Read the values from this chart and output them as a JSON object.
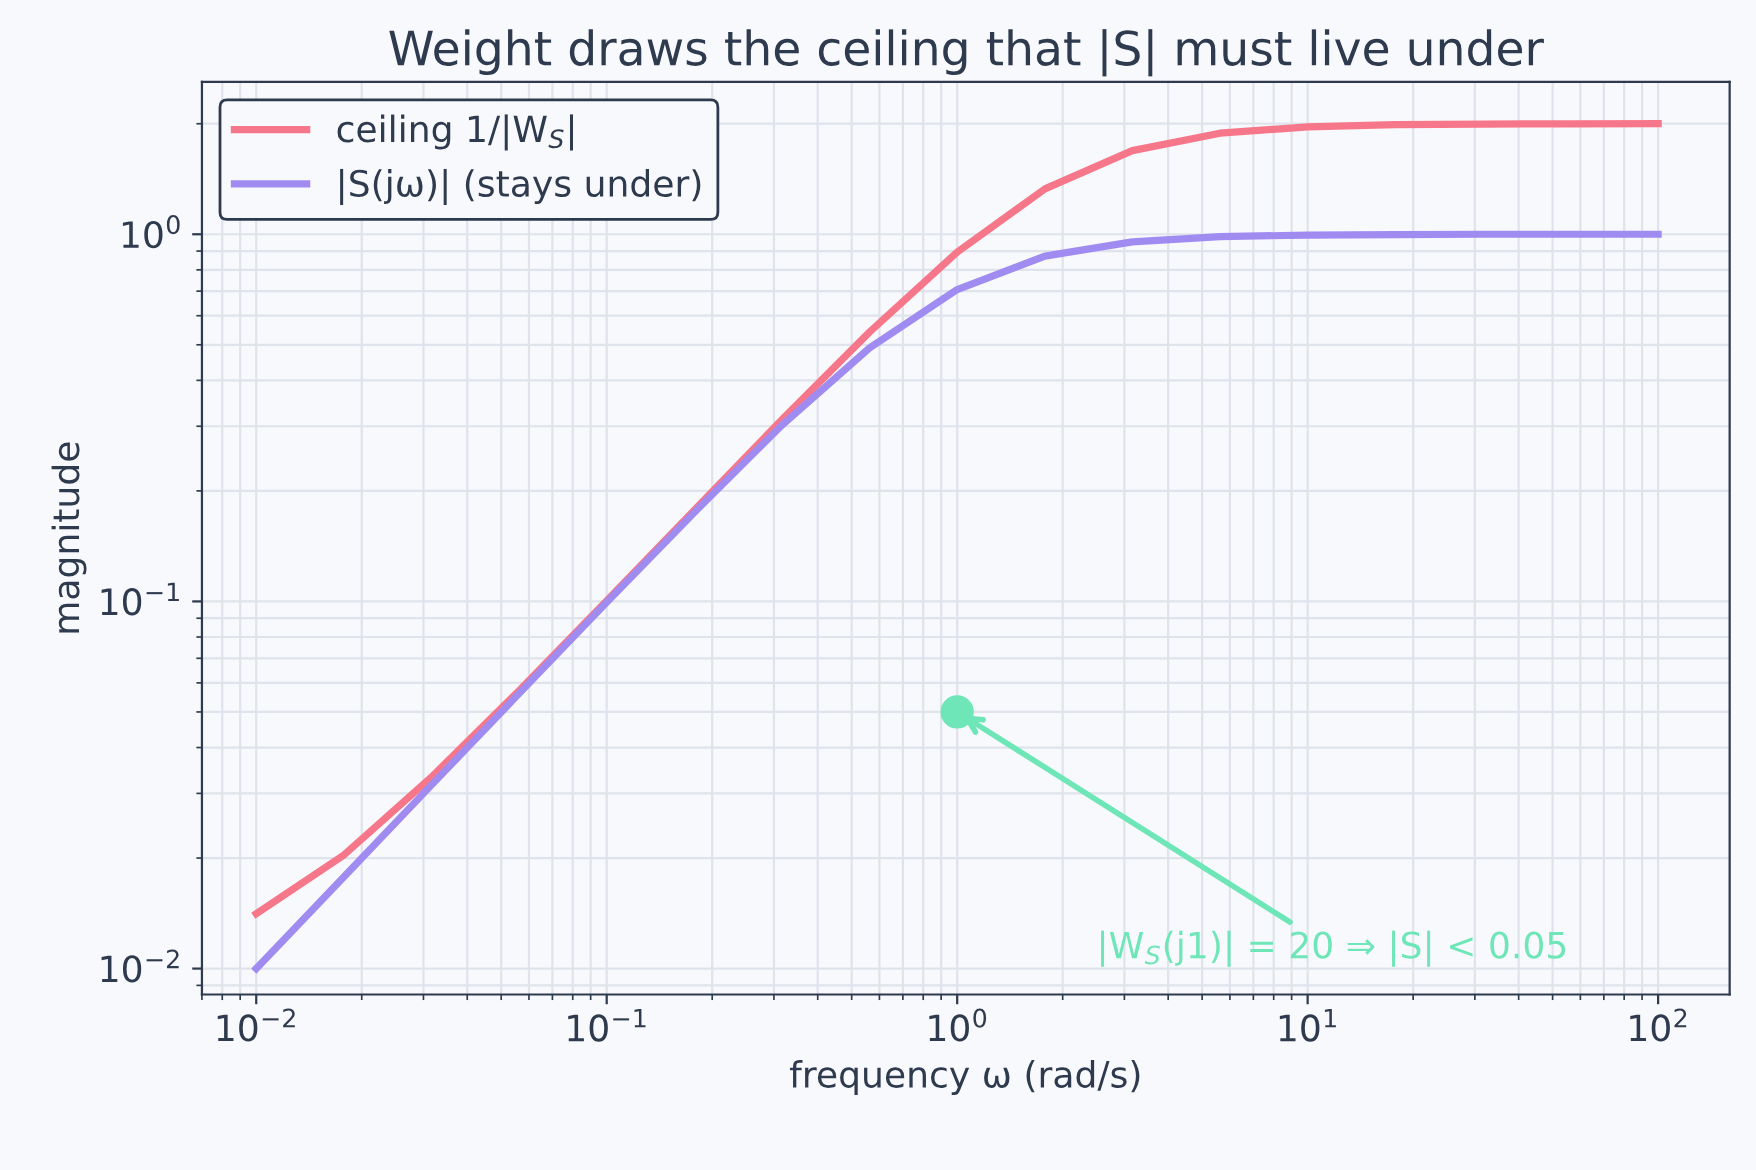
{
  "chart_data": {
    "type": "line",
    "title": "Weight draws the ceiling that |S| must live under",
    "xlabel": "frequency ω (rad/s)",
    "ylabel": "magnitude",
    "x": [
      0.01,
      0.0178,
      0.0316,
      0.0562,
      0.1,
      0.178,
      0.316,
      0.562,
      1,
      1.78,
      3.16,
      5.62,
      10,
      17.8,
      31.6,
      56.2,
      100
    ],
    "series": [
      {
        "name": "ceiling 1/|W$_{S}$|",
        "color": "#f7778a",
        "values": [
          0.0141,
          0.0204,
          0.0332,
          0.0571,
          0.1004,
          0.1774,
          0.3125,
          0.5414,
          0.894,
          1.329,
          1.69,
          1.885,
          1.961,
          1.988,
          1.996,
          1.999,
          2.0
        ]
      },
      {
        "name": "|S(jω)| (stays under)",
        "color": "#a08cf0",
        "values": [
          0.01,
          0.0178,
          0.0316,
          0.0561,
          0.0995,
          0.175,
          0.302,
          0.49,
          0.707,
          0.872,
          0.953,
          0.985,
          0.995,
          0.998,
          1.0,
          1.0,
          1.0
        ]
      }
    ],
    "annotations": [
      {
        "text": "|W$_{S}$(j1)| = 20 ⇒ |S| < 0.05",
        "x": 1,
        "y": 0.05
      }
    ],
    "log": "xy",
    "xlim": [
      0.007,
      160
    ],
    "ylim": [
      0.0085,
      2.6
    ],
    "xticks": [
      {
        "value": 0.01,
        "label": "10$^{−2}$"
      },
      {
        "value": 0.1,
        "label": "10$^{−1}$"
      },
      {
        "value": 1,
        "label": "10$^{0}$"
      },
      {
        "value": 10,
        "label": "10$^{1}$"
      },
      {
        "value": 100,
        "label": "10$^{2}$"
      }
    ],
    "yticks": [
      {
        "value": 0.01,
        "label": "10$^{−2}$"
      },
      {
        "value": 0.1,
        "label": "10$^{−1}$"
      },
      {
        "value": 1,
        "label": "10$^{0}$"
      }
    ],
    "grid": true,
    "legend": "top left",
    "marker": "none",
    "line_style": "solid"
  }
}
